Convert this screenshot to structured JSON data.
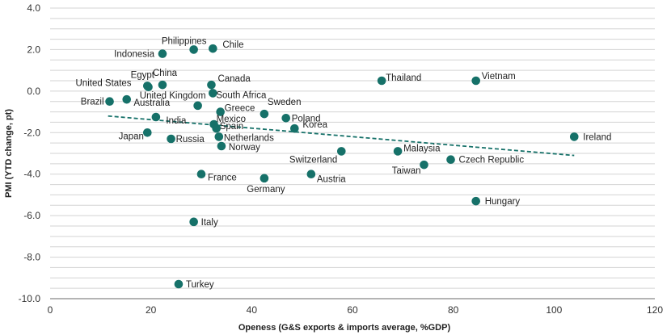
{
  "chart_data": {
    "type": "scatter",
    "xlabel": "Openess (G&S exports & imports average, %GDP)",
    "ylabel": "PMI (YTD change, pt)",
    "xlim": [
      0,
      120
    ],
    "ylim": [
      -10,
      4
    ],
    "x_ticks": [
      "0",
      "20",
      "40",
      "60",
      "80",
      "100",
      "120"
    ],
    "y_ticks": [
      "-10.0",
      "-8.0",
      "-6.0",
      "-4.0",
      "-2.0",
      "0.0",
      "2.0",
      "4.0"
    ],
    "grid": "horizontal",
    "marker_color": "#167169",
    "trendline": {
      "style": "dashed",
      "color": "#167169",
      "x": [
        11.5,
        104
      ],
      "y": [
        -1.2,
        -3.1
      ]
    },
    "points": [
      {
        "name": "Indonesia",
        "x": 22.3,
        "y": 1.8
      },
      {
        "name": "Philippines",
        "x": 28.5,
        "y": 2.0
      },
      {
        "name": "Chile",
        "x": 32.3,
        "y": 2.05
      },
      {
        "name": "Egypt",
        "x": 19.3,
        "y": 0.25
      },
      {
        "name": "China",
        "x": 22.3,
        "y": 0.3
      },
      {
        "name": "United States",
        "x": 19.5,
        "y": 0.2
      },
      {
        "name": "Canada",
        "x": 32.0,
        "y": 0.3
      },
      {
        "name": "South Africa",
        "x": 32.3,
        "y": -0.1
      },
      {
        "name": "United Kingdom",
        "x": 29.3,
        "y": -0.7
      },
      {
        "name": "Brazil",
        "x": 11.8,
        "y": -0.5
      },
      {
        "name": "Australia",
        "x": 15.2,
        "y": -0.4
      },
      {
        "name": "Greece",
        "x": 33.8,
        "y": -1.0
      },
      {
        "name": "Sweden",
        "x": 42.5,
        "y": -1.1
      },
      {
        "name": "Poland",
        "x": 46.8,
        "y": -1.3
      },
      {
        "name": "India",
        "x": 21.0,
        "y": -1.25
      },
      {
        "name": "Mexico",
        "x": 32.5,
        "y": -1.6
      },
      {
        "name": "Spain",
        "x": 33.0,
        "y": -1.8
      },
      {
        "name": "Korea",
        "x": 48.5,
        "y": -1.8
      },
      {
        "name": "Japan",
        "x": 19.3,
        "y": -2.0
      },
      {
        "name": "Russia",
        "x": 24.0,
        "y": -2.3
      },
      {
        "name": "Netherlands",
        "x": 33.5,
        "y": -2.2
      },
      {
        "name": "Norway",
        "x": 34.0,
        "y": -2.65
      },
      {
        "name": "Switzerland",
        "x": 57.8,
        "y": -2.9
      },
      {
        "name": "Malaysia",
        "x": 69.0,
        "y": -2.9
      },
      {
        "name": "Czech Republic",
        "x": 79.5,
        "y": -3.3
      },
      {
        "name": "Taiwan",
        "x": 74.2,
        "y": -3.55
      },
      {
        "name": "France",
        "x": 30.0,
        "y": -4.0
      },
      {
        "name": "Germany",
        "x": 42.5,
        "y": -4.2
      },
      {
        "name": "Austria",
        "x": 51.8,
        "y": -4.0
      },
      {
        "name": "Thailand",
        "x": 65.8,
        "y": 0.5
      },
      {
        "name": "Vietnam",
        "x": 84.5,
        "y": 0.5
      },
      {
        "name": "Ireland",
        "x": 104.0,
        "y": -2.2
      },
      {
        "name": "Hungary",
        "x": 84.5,
        "y": -5.3
      },
      {
        "name": "Italy",
        "x": 28.5,
        "y": -6.3
      },
      {
        "name": "Turkey",
        "x": 25.5,
        "y": -9.3
      }
    ]
  }
}
